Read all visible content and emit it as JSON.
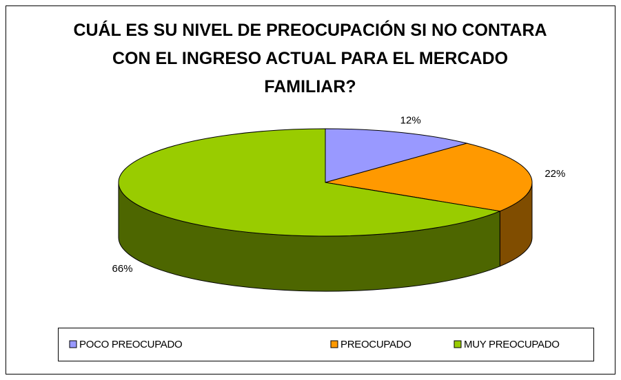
{
  "chart_data": {
    "type": "pie3d",
    "title": "CUÁL ES SU NIVEL DE PREOCUPACIÓN SI NO CONTARA CON EL INGRESO ACTUAL PARA EL MERCADO FAMILIAR?",
    "categories": [
      "POCO PREOCUPADO",
      "PREOCUPADO",
      "MUY PREOCUPADO"
    ],
    "values": [
      12,
      22,
      66
    ],
    "value_labels": [
      "12%",
      "22%",
      "66%"
    ],
    "colors": [
      "#9999ff",
      "#ff9900",
      "#99cc00"
    ],
    "legend": "bottom"
  }
}
